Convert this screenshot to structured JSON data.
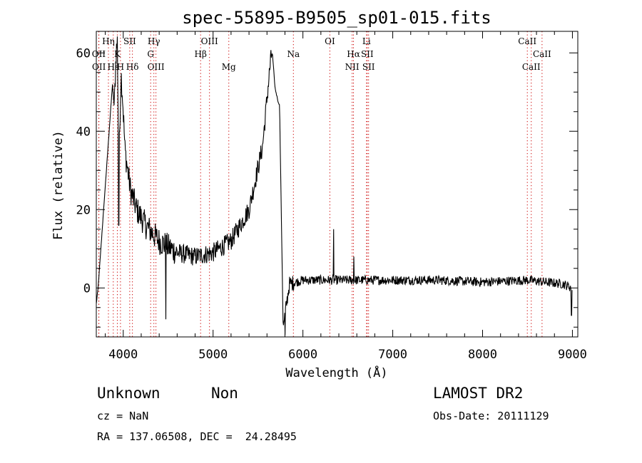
{
  "chart_data": {
    "type": "line",
    "title": "spec-55895-B9505_sp01-015.fits",
    "xlabel": "Wavelength (Å)",
    "ylabel": "Flux (relative)",
    "xlim": [
      3700,
      9060
    ],
    "ylim": [
      -12.5,
      65.5
    ],
    "xticks": [
      4000,
      5000,
      6000,
      7000,
      8000,
      9000
    ],
    "yticks": [
      0,
      20,
      40,
      60
    ],
    "grid": false,
    "series_color": "#000000",
    "line_color": "#cc0000",
    "lines": [
      {
        "label": "OII",
        "wave": 3727,
        "row": 1
      },
      {
        "label": "OII",
        "wave": 3729,
        "row": 2
      },
      {
        "label": "Hη",
        "wave": 3835,
        "row": 0
      },
      {
        "label": "Hε",
        "wave": 3889,
        "row": 2
      },
      {
        "label": "K",
        "wave": 3934,
        "row": 1
      },
      {
        "label": "H",
        "wave": 3969,
        "row": 2
      },
      {
        "label": "SII",
        "wave": 4072,
        "row": 0
      },
      {
        "label": "Hδ",
        "wave": 4102,
        "row": 2
      },
      {
        "label": "Hγ",
        "wave": 4341,
        "row": 0
      },
      {
        "label": "G",
        "wave": 4305,
        "row": 1
      },
      {
        "label": "OIII",
        "wave": 4364,
        "row": 2
      },
      {
        "label": "OIII",
        "wave": 4960,
        "row": 0
      },
      {
        "label": "Hβ",
        "wave": 4861,
        "row": 1
      },
      {
        "label": "Mg",
        "wave": 5175,
        "row": 2
      },
      {
        "label": "Na",
        "wave": 5894,
        "row": 1
      },
      {
        "label": "OI",
        "wave": 6300,
        "row": 0
      },
      {
        "label": "Hα",
        "wave": 6563,
        "row": 1
      },
      {
        "label": "NII",
        "wave": 6548,
        "row": 2
      },
      {
        "label": "Li",
        "wave": 6708,
        "row": 0
      },
      {
        "label": "SII",
        "wave": 6716,
        "row": 1
      },
      {
        "label": "SII",
        "wave": 6731,
        "row": 2
      },
      {
        "label": "CaII",
        "wave": 8498,
        "row": 0
      },
      {
        "label": "CaII",
        "wave": 8662,
        "row": 1
      },
      {
        "label": "CaII",
        "wave": 8542,
        "row": 2
      }
    ],
    "spectrum_outline": [
      [
        3700,
        -4
      ],
      [
        3720,
        0
      ],
      [
        3880,
        52
      ],
      [
        3900,
        46
      ],
      [
        3920,
        60
      ],
      [
        3935,
        63
      ],
      [
        3950,
        30
      ],
      [
        3975,
        55
      ],
      [
        3990,
        50
      ],
      [
        4020,
        35
      ],
      [
        4080,
        25
      ],
      [
        4150,
        20
      ],
      [
        4250,
        16
      ],
      [
        4400,
        12
      ],
      [
        4600,
        9
      ],
      [
        4800,
        8
      ],
      [
        5000,
        9
      ],
      [
        5200,
        12
      ],
      [
        5400,
        20
      ],
      [
        5550,
        36
      ],
      [
        5640,
        58
      ],
      [
        5660,
        60
      ],
      [
        5690,
        51
      ],
      [
        5730,
        47
      ],
      [
        5740,
        47
      ],
      [
        5780,
        -10
      ],
      [
        5850,
        1
      ],
      [
        6000,
        2
      ],
      [
        6500,
        2
      ],
      [
        7000,
        2
      ],
      [
        7500,
        2
      ],
      [
        8000,
        1.5
      ],
      [
        8500,
        2
      ],
      [
        8900,
        1
      ],
      [
        9000,
        0
      ]
    ]
  },
  "info": {
    "class": "Unknown",
    "subclass": "Non",
    "cz": "cz = NaN",
    "coords": "RA = 137.06508, DEC =  24.28495",
    "survey": "LAMOST DR2",
    "obs_date": "Obs-Date: 20111129"
  }
}
